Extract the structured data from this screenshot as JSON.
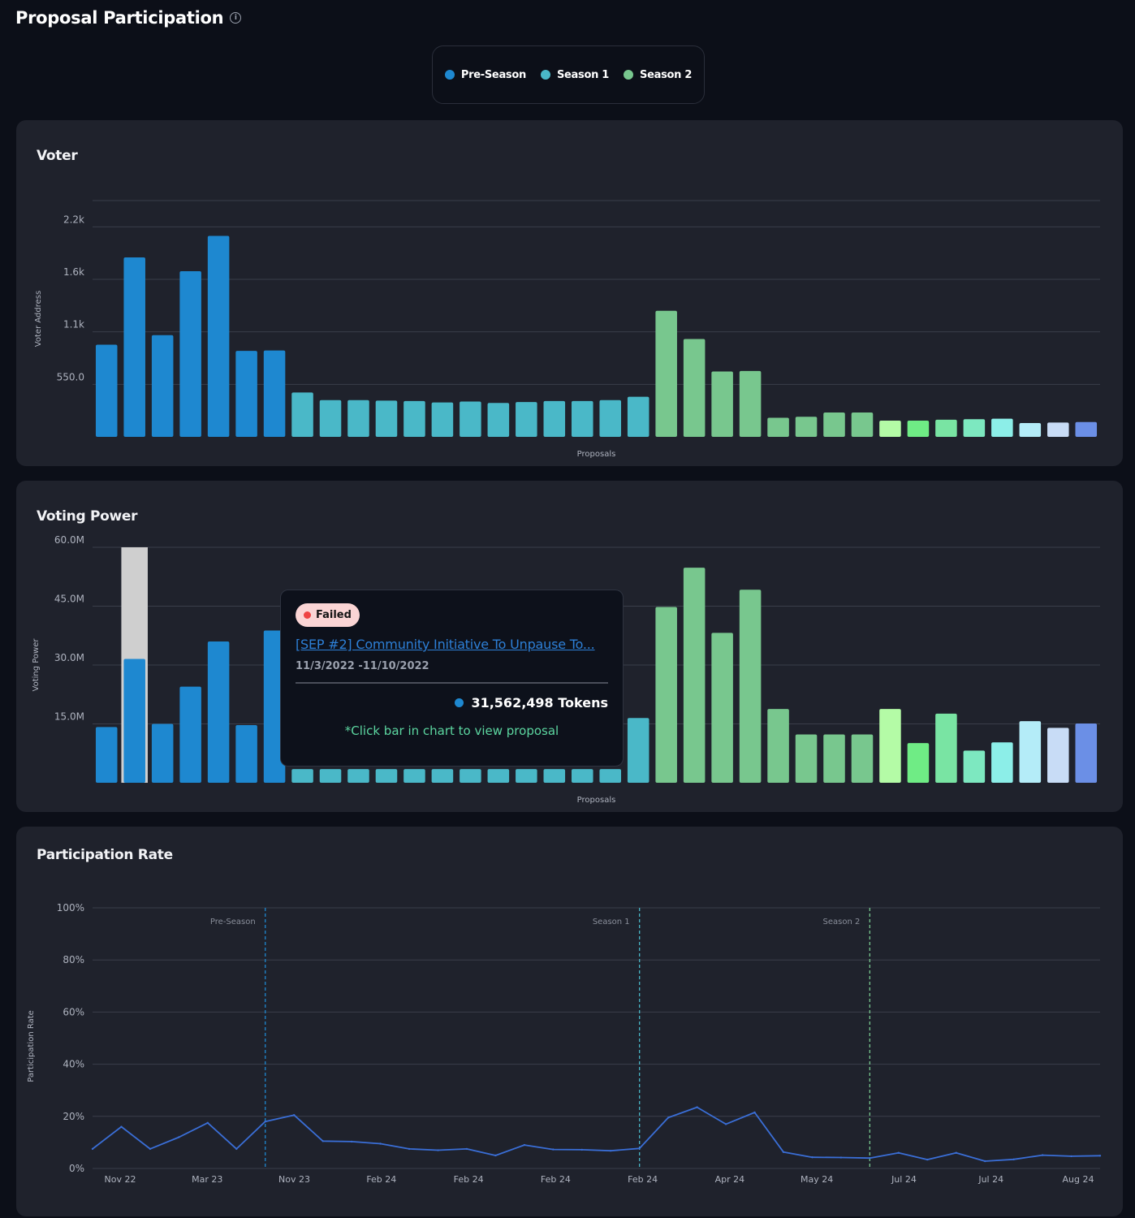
{
  "header": {
    "title": "Proposal Participation",
    "info_icon": "i"
  },
  "legend": [
    {
      "label": "Pre-Season",
      "color": "#1e88d0"
    },
    {
      "label": "Season 1",
      "color": "#4ab8c8"
    },
    {
      "label": "Season 2",
      "color": "#78c78e"
    }
  ],
  "cards": {
    "voter_title": "Voter",
    "voting_power_title": "Voting Power",
    "participation_title": "Participation Rate"
  },
  "tooltip": {
    "status": "Failed",
    "title": "[SEP #2] Community Initiative To Unpause To...",
    "dates": "11/3/2022 -11/10/2022",
    "tokens": "31,562,498 Tokens",
    "hint": "*Click bar in chart to view proposal"
  },
  "chart_data": [
    {
      "type": "bar",
      "title": "Voter",
      "xlabel": "Proposals",
      "ylabel": "Voter Address",
      "ylim": [
        0,
        2475
      ],
      "yticks": [
        550,
        1100,
        1650,
        2200
      ],
      "ytick_labels": [
        "550.0",
        "1.1k",
        "1.6k",
        "2.2k"
      ],
      "values": [
        965,
        1880,
        1065,
        1735,
        2105,
        900,
        905,
        465,
        385,
        385,
        380,
        375,
        360,
        370,
        355,
        365,
        375,
        375,
        385,
        420,
        1320,
        1025,
        685,
        690,
        200,
        210,
        255,
        255,
        170,
        170,
        180,
        185,
        190,
        145,
        150,
        155
      ],
      "colors": [
        "#1e88d0",
        "#1e88d0",
        "#1e88d0",
        "#1e88d0",
        "#1e88d0",
        "#1e88d0",
        "#1e88d0",
        "#4ab8c8",
        "#4ab8c8",
        "#4ab8c8",
        "#4ab8c8",
        "#4ab8c8",
        "#4ab8c8",
        "#4ab8c8",
        "#4ab8c8",
        "#4ab8c8",
        "#4ab8c8",
        "#4ab8c8",
        "#4ab8c8",
        "#4ab8c8",
        "#78c78e",
        "#78c78e",
        "#78c78e",
        "#78c78e",
        "#78c78e",
        "#78c78e",
        "#78c78e",
        "#78c78e",
        "#b4fba6",
        "#6fec85",
        "#79e4a3",
        "#7de8c0",
        "#8ceee8",
        "#b4ecf8",
        "#c8dcf6",
        "#6b8fe6"
      ]
    },
    {
      "type": "bar",
      "title": "Voting Power",
      "xlabel": "Proposals",
      "ylabel": "Voting Power",
      "ylim": [
        0,
        60000000
      ],
      "yticks": [
        15000000,
        30000000,
        45000000,
        60000000
      ],
      "ytick_labels": [
        "15.0M",
        "30.0M",
        "45.0M",
        "60.0M"
      ],
      "highlight_index": 1,
      "values": [
        14200000,
        31562498,
        15000000,
        24500000,
        36000000,
        14700000,
        38800000,
        3500000,
        3500000,
        3500000,
        3500000,
        3500000,
        3500000,
        3500000,
        3500000,
        3500000,
        3500000,
        3500000,
        3500000,
        16500000,
        44800000,
        54800000,
        38200000,
        49200000,
        18800000,
        12300000,
        12300000,
        12300000,
        18800000,
        10100000,
        17600000,
        8200000,
        10300000,
        15700000,
        14000000,
        15100000
      ],
      "colors": [
        "#1e88d0",
        "#1e88d0",
        "#1e88d0",
        "#1e88d0",
        "#1e88d0",
        "#1e88d0",
        "#1e88d0",
        "#4ab8c8",
        "#4ab8c8",
        "#4ab8c8",
        "#4ab8c8",
        "#4ab8c8",
        "#4ab8c8",
        "#4ab8c8",
        "#4ab8c8",
        "#4ab8c8",
        "#4ab8c8",
        "#4ab8c8",
        "#4ab8c8",
        "#4ab8c8",
        "#78c78e",
        "#78c78e",
        "#78c78e",
        "#78c78e",
        "#78c78e",
        "#78c78e",
        "#78c78e",
        "#78c78e",
        "#b4fba6",
        "#6fec85",
        "#79e4a3",
        "#7de8c0",
        "#8ceee8",
        "#b4ecf8",
        "#c8dcf6",
        "#6b8fe6"
      ]
    },
    {
      "type": "line",
      "title": "Participation Rate",
      "ylabel": "Participation Rate",
      "ylim": [
        0,
        100
      ],
      "yticks": [
        0,
        20,
        40,
        60,
        80,
        100
      ],
      "ytick_labels": [
        "0%",
        "20%",
        "40%",
        "60%",
        "80%",
        "100%"
      ],
      "xtick_labels": [
        "Nov 22",
        "Mar 23",
        "Nov 23",
        "Feb 24",
        "Feb 24",
        "Feb 24",
        "Feb 24",
        "Apr 24",
        "May 24",
        "Jul 24",
        "Jul 24",
        "Aug 24"
      ],
      "season_markers": [
        {
          "label": "Pre-Season",
          "position": 6,
          "color": "#1e88d0"
        },
        {
          "label": "Season 1",
          "position": 19,
          "color": "#4ab8c8"
        },
        {
          "label": "Season 2",
          "position": 27,
          "color": "#78c78e"
        }
      ],
      "values": [
        7.5,
        16,
        7.5,
        12,
        17.5,
        7.5,
        18,
        20.5,
        10.5,
        10.3,
        9.5,
        7.5,
        7,
        7.5,
        5,
        9,
        7.3,
        7.2,
        6.8,
        7.7,
        19.5,
        23.5,
        17,
        21.5,
        6.3,
        4.3,
        4.2,
        4,
        6,
        3.4,
        6,
        2.8,
        3.5,
        5.1,
        4.7,
        4.9
      ],
      "line_color": "#3a6ed6"
    }
  ]
}
